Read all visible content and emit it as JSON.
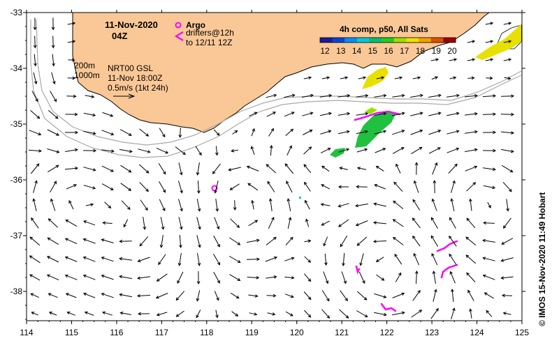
{
  "title": {
    "date": "11-Nov-2020",
    "time": "04Z"
  },
  "legend": {
    "argo_label": "Argo",
    "drifters_line1": "drifters@12h",
    "drifters_line2": "to 12/11 12Z",
    "argo_color": "#ff00ff",
    "drifter_color": "#ff00ff"
  },
  "sst_colorbar": {
    "title": "4h comp, p50, All Sats",
    "ticks": [
      "12",
      "13",
      "14",
      "15",
      "16",
      "17",
      "18",
      "19",
      "20"
    ],
    "colors": [
      "#1a1a9a",
      "#0047d8",
      "#0090ff",
      "#00c8e0",
      "#00c070",
      "#20d020",
      "#9be000",
      "#f0e000",
      "#f4a000",
      "#e05000",
      "#a00000"
    ]
  },
  "currents_legend": {
    "isobath_200": "200m",
    "isobath_1000": "1000m",
    "product_line1": "NRT00 GSL",
    "product_line2": "11-Nov 18:00Z",
    "scale_label": "0.5m/s (1kt 24h)"
  },
  "credit": "©  IMOS 15-Nov-2020 11:49 Hobart",
  "axes": {
    "x_ticks": [
      "114",
      "115",
      "116",
      "117",
      "118",
      "119",
      "120",
      "121",
      "122",
      "123",
      "124",
      "125"
    ],
    "y_ticks": [
      "-33",
      "-34",
      "-35",
      "-36",
      "-37",
      "-38"
    ]
  },
  "colors": {
    "land": "#fac896",
    "coast": "#000000",
    "isobath": "#a8a8a8",
    "sst_green": "#20c040",
    "sst_yellow": "#e8e000",
    "drifter": "#ff00ff"
  }
}
